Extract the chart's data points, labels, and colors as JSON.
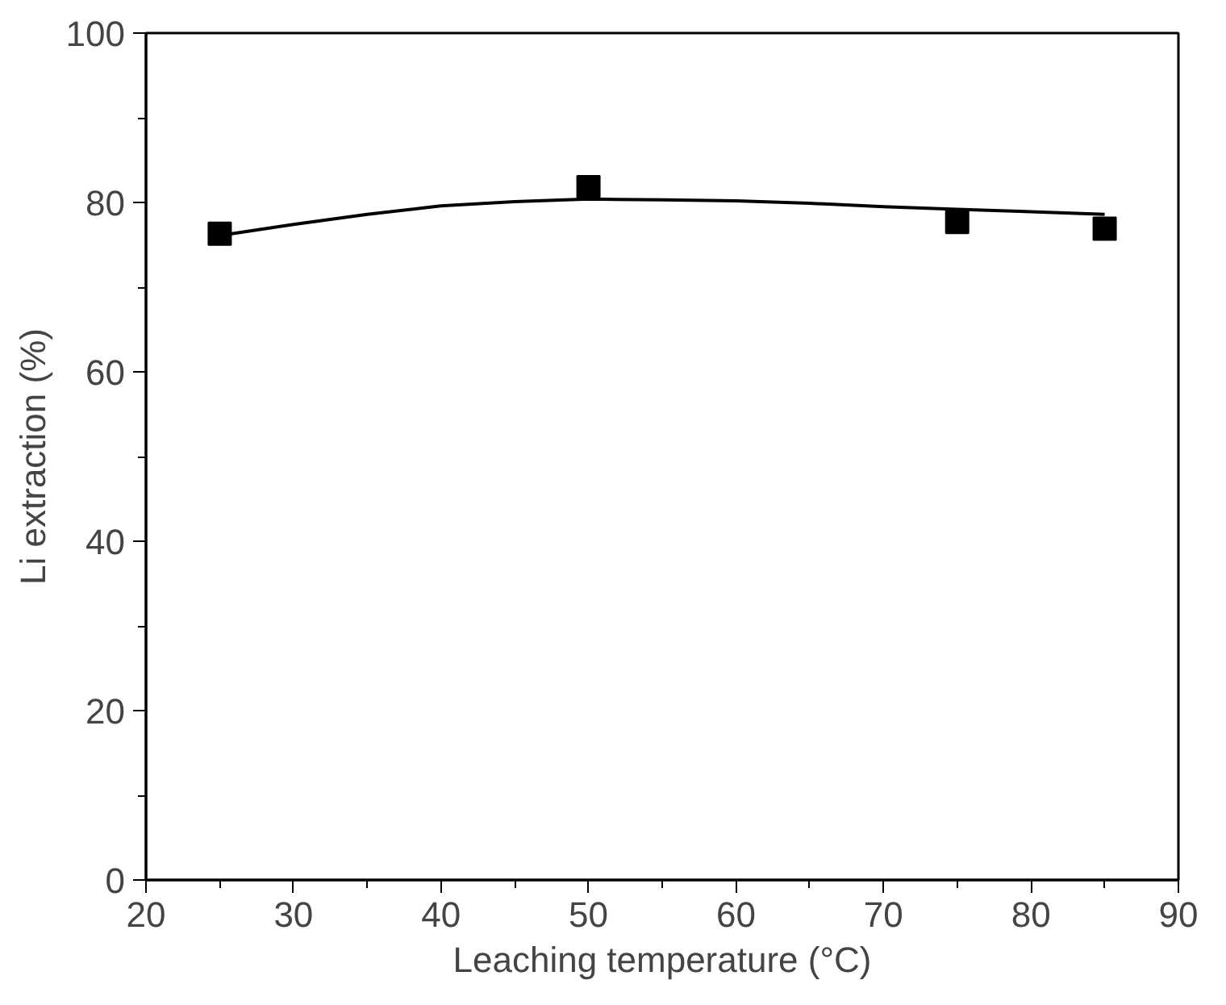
{
  "chart_data": {
    "type": "scatter",
    "xlabel": "Leaching temperature (°C)",
    "ylabel": "Li extraction (%)",
    "xlim": [
      20,
      90
    ],
    "ylim": [
      0,
      100
    ],
    "xticks": [
      20,
      30,
      40,
      50,
      60,
      70,
      80,
      90
    ],
    "yticks": [
      0,
      20,
      40,
      60,
      80,
      100
    ],
    "grid": false,
    "marker": "square",
    "series": [
      {
        "color": "#000000",
        "x": [
          25,
          50,
          75,
          85
        ],
        "values": [
          76.3,
          81.8,
          77.7,
          76.9
        ]
      },
      {
        "type": "line",
        "color": "#000000",
        "marker": "none",
        "line_style": "solid",
        "x": [
          25,
          30,
          35,
          40,
          45,
          50,
          55,
          60,
          65,
          70,
          75,
          80,
          85
        ],
        "values": [
          76.1,
          77.4,
          78.6,
          79.6,
          80.1,
          80.4,
          80.3,
          80.2,
          79.9,
          79.5,
          79.2,
          78.9,
          78.6
        ]
      }
    ]
  }
}
